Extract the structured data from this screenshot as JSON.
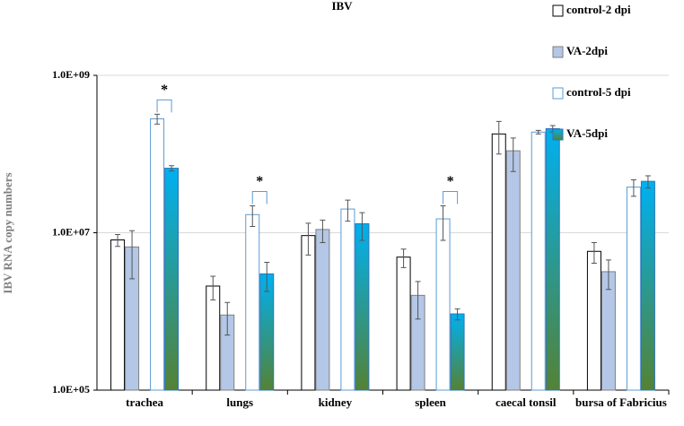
{
  "chart_data": {
    "type": "bar",
    "title": "IBV",
    "ylabel": "IBV RNA copy numbers",
    "log_scale": true,
    "grid": true,
    "categories": [
      "trachea",
      "lungs",
      "kidney",
      "spleen",
      "caecal tonsil",
      "bursa of Fabricius"
    ],
    "ylim": [
      100000,
      1000000000
    ],
    "yticks": [
      {
        "value": 100000,
        "label": "1.0E+05"
      },
      {
        "value": 10000000,
        "label": "1.0E+07"
      },
      {
        "value": 1000000000,
        "label": "1.0E+09"
      }
    ],
    "series": [
      {
        "name": "control-2 dpi",
        "fill": "#ffffff",
        "stroke": "#000000",
        "values": [
          8100000,
          2100000,
          9200000,
          4900000,
          180000000,
          5800000
        ],
        "errors": [
          1400000,
          700000,
          4000000,
          1300000,
          80000000,
          1700000
        ]
      },
      {
        "name": "VA-2dpi",
        "fill": "#b4c7e7",
        "stroke": "#7f7f7f",
        "values": [
          6600000,
          900000,
          11000000,
          1600000,
          110000000,
          3200000
        ],
        "errors": [
          4000000,
          400000,
          3500000,
          800000,
          50000000,
          1300000
        ]
      },
      {
        "name": "control-5 dpi",
        "fill": "#ffffff",
        "stroke": "#5b9bd5",
        "values": [
          280000000,
          17000000,
          20000000,
          15000000,
          190000000,
          38000000
        ],
        "errors": [
          40000000,
          5000000,
          6000000,
          7000000,
          10000000,
          9000000
        ]
      },
      {
        "name": "VA-5dpi",
        "fill": [
          "#00b0f0",
          "#548235"
        ],
        "stroke": "#2e75b6",
        "values": [
          66000000,
          3000000,
          13000000,
          930000,
          210000000,
          45000000
        ],
        "errors": [
          5000000,
          1200000,
          5000000,
          150000,
          20000000,
          8000000
        ]
      }
    ],
    "annotations": [
      {
        "text": "*",
        "category": 0
      },
      {
        "text": "*",
        "category": 1
      },
      {
        "text": "*",
        "category": 3
      }
    ]
  }
}
